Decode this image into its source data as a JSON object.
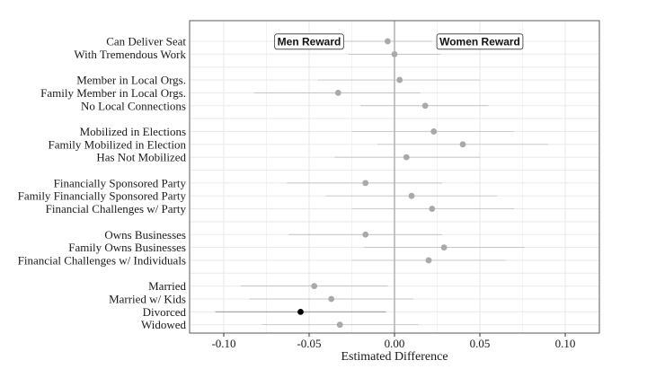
{
  "chart_data": {
    "type": "scatter",
    "title": "",
    "xlabel": "Estimated Difference",
    "ylabel": "",
    "xlim": [
      -0.12,
      0.12
    ],
    "x_ticks": [
      -0.1,
      -0.05,
      0.0,
      0.05,
      0.1
    ],
    "x_tick_labels": [
      "-0.10",
      "-0.05",
      "0.00",
      "0.05",
      "0.10"
    ],
    "grid": true,
    "reference_line_x": 0,
    "annotations": [
      {
        "text": "Men Reward",
        "x": -0.05,
        "row": 0
      },
      {
        "text": "Women Reward",
        "x": 0.05,
        "row": 0
      }
    ],
    "colors": {
      "point": "#a9a9a9",
      "highlight": "#000000",
      "ci": "#b9b9b9",
      "grid": "#ebebeb",
      "panel_border": "#5a5a5a"
    },
    "groups": [
      {
        "items": [
          {
            "label": "Can Deliver Seat",
            "estimate": -0.004,
            "ci_low": -0.03,
            "ci_high": 0.022
          },
          {
            "label": "With Tremendous Work",
            "estimate": 0.0,
            "ci_low": -0.027,
            "ci_high": 0.027
          }
        ]
      },
      {
        "items": [
          {
            "label": "Member in Local Orgs.",
            "estimate": 0.003,
            "ci_low": -0.045,
            "ci_high": 0.05
          },
          {
            "label": "Family Member in Local Orgs.",
            "estimate": -0.033,
            "ci_low": -0.082,
            "ci_high": 0.015
          },
          {
            "label": "No Local Connections",
            "estimate": 0.018,
            "ci_low": -0.02,
            "ci_high": 0.055
          }
        ]
      },
      {
        "items": [
          {
            "label": "Mobilized in Elections",
            "estimate": 0.023,
            "ci_low": -0.025,
            "ci_high": 0.07
          },
          {
            "label": "Family Mobilized in Election",
            "estimate": 0.04,
            "ci_low": -0.01,
            "ci_high": 0.09
          },
          {
            "label": "Has Not Mobilized",
            "estimate": 0.007,
            "ci_low": -0.035,
            "ci_high": 0.05
          }
        ]
      },
      {
        "items": [
          {
            "label": "Financially Sponsored Party",
            "estimate": -0.017,
            "ci_low": -0.063,
            "ci_high": 0.028
          },
          {
            "label": "Family Financially Sponsored Party",
            "estimate": 0.01,
            "ci_low": -0.04,
            "ci_high": 0.06
          },
          {
            "label": "Financial Challenges w/ Party",
            "estimate": 0.022,
            "ci_low": -0.025,
            "ci_high": 0.07
          }
        ]
      },
      {
        "items": [
          {
            "label": "Owns Businesses",
            "estimate": -0.017,
            "ci_low": -0.062,
            "ci_high": 0.028
          },
          {
            "label": "Family Owns Businesses",
            "estimate": 0.029,
            "ci_low": -0.018,
            "ci_high": 0.076
          },
          {
            "label": "Financial Challenges w/ Individuals",
            "estimate": 0.02,
            "ci_low": -0.025,
            "ci_high": 0.065
          }
        ]
      },
      {
        "items": [
          {
            "label": "Married",
            "estimate": -0.047,
            "ci_low": -0.09,
            "ci_high": -0.004
          },
          {
            "label": "Married w/ Kids",
            "estimate": -0.037,
            "ci_low": -0.085,
            "ci_high": 0.011
          },
          {
            "label": "Divorced",
            "estimate": -0.055,
            "ci_low": -0.105,
            "ci_high": -0.005,
            "significant": true
          },
          {
            "label": "Widowed",
            "estimate": -0.032,
            "ci_low": -0.078,
            "ci_high": 0.014
          }
        ]
      }
    ]
  }
}
